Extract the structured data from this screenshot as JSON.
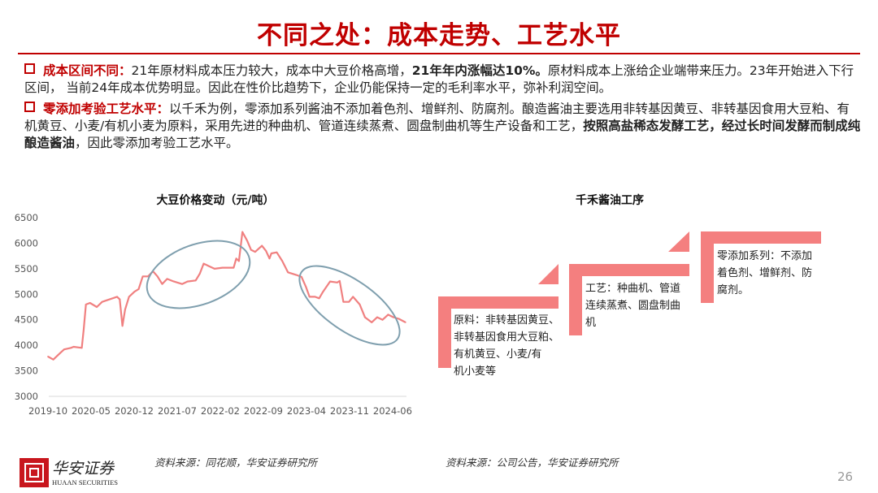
{
  "title": "不同之处：成本走势、工艺水平",
  "bullets": [
    {
      "label": "成本区间不同：",
      "text1": "21年原材料成本压力较大，成本中大豆价格高增，",
      "bold1": "21年年内涨幅达10%。",
      "text2": "原材料成本上涨给企业端带来压力。23年开始进入下行区间， 当前24年成本优势明显。因此在性价比趋势下，企业仍能保持一定的毛利率水平，弥补利润空间。"
    },
    {
      "label": "零添加考验工艺水平：",
      "text1": "以千禾为例，零添加系列酱油不添加着色剂、增鲜剂、防腐剂。酿造酱油主要选用非转基因黄豆、非转基因食用大豆粕、有机黄豆、小麦/有机小麦为原料，采用先进的种曲机、管道连续蒸煮、圆盘制曲机等生产设备和工艺，",
      "bold1": "按照高盐稀态发酵工艺，经过长时间发酵而制成纯酿造酱油",
      "text2": "，因此零添加考验工艺水平。"
    }
  ],
  "chart_data": {
    "type": "line",
    "title": "大豆价格变动（元/吨）",
    "xlabel": "",
    "ylabel": "",
    "ylim": [
      3000,
      6500
    ],
    "yticks": [
      "6500",
      "6000",
      "5500",
      "5000",
      "4500",
      "4000",
      "3500",
      "3000"
    ],
    "xticks": [
      "2019-10",
      "2020-05",
      "2020-12",
      "2021-07",
      "2022-02",
      "2022-09",
      "2023-04",
      "2023-11",
      "2024-06"
    ],
    "grid": false,
    "line_color": "#f08080",
    "annotation_color": "#7f9fae",
    "annotations": [
      "ellipse around 2021-04 to 2022-05",
      "ellipse around 2023-03 to 2024-06"
    ],
    "series": [
      {
        "x": [
          "2019-10-01",
          "2019-10-27",
          "2019-12-01",
          "2019-12-20",
          "2020-01-23",
          "2020-02-06",
          "2020-03-16",
          "2020-03-25",
          "2020-04-06",
          "2020-04-26",
          "2020-05-29",
          "2020-06-25",
          "2020-09-08",
          "2020-09-21",
          "2020-10-04",
          "2020-10-17",
          "2020-11-06",
          "2020-12-03",
          "2020-12-23",
          "2021-01-13",
          "2021-02-09",
          "2021-03-03",
          "2021-03-25",
          "2021-04-18",
          "2021-05-12",
          "2021-06-15",
          "2021-07-25",
          "2021-08-21",
          "2021-10-01",
          "2021-10-21",
          "2021-11-10",
          "2021-12-06",
          "2022-01-03",
          "2022-02-12",
          "2022-04-06",
          "2022-04-19",
          "2022-05-02",
          "2022-05-19",
          "2022-06-12",
          "2022-07-01",
          "2022-07-21",
          "2022-08-24",
          "2022-09-14",
          "2022-10-01",
          "2022-10-10",
          "2022-11-06",
          "2022-12-03",
          "2023-01-01",
          "2023-02-10",
          "2023-03-07",
          "2023-03-28",
          "2023-04-16",
          "2023-05-13",
          "2023-06-03",
          "2023-06-22",
          "2023-07-26",
          "2023-09-01",
          "2023-09-13",
          "2023-10-01",
          "2023-10-28",
          "2023-11-18",
          "2023-12-21",
          "2024-01-16",
          "2024-02-19",
          "2024-03-16",
          "2024-04-12",
          "2024-05-09",
          "2024-06-05",
          "2024-07-01",
          "2024-08-04"
        ],
        "values": [
          3780,
          3720,
          3850,
          3920,
          3950,
          3970,
          3950,
          4300,
          4800,
          4830,
          4750,
          4850,
          4950,
          4900,
          4380,
          4700,
          4950,
          5050,
          5100,
          5350,
          5350,
          5450,
          5350,
          5200,
          5300,
          5250,
          5200,
          5250,
          5270,
          5400,
          5600,
          5550,
          5500,
          5520,
          5520,
          5700,
          5650,
          6220,
          6050,
          5870,
          5830,
          5950,
          5850,
          5700,
          5800,
          5820,
          5650,
          5430,
          5380,
          5340,
          5150,
          4950,
          4950,
          4920,
          5050,
          5250,
          5230,
          5260,
          4850,
          4850,
          4950,
          4800,
          4550,
          4450,
          4550,
          4500,
          4600,
          4550,
          4520,
          4450
        ]
      }
    ]
  },
  "process": {
    "title": "千禾酱油工序",
    "color": "#f47f7f",
    "steps": [
      {
        "lines": [
          "原料：非转基因黄豆、",
          "非转基因食用大豆粕、",
          "有机黄豆、小麦/有",
          "机小麦等"
        ]
      },
      {
        "lines": [
          "工艺：种曲机、管道",
          "连续蒸煮、圆盘制曲",
          "机"
        ]
      },
      {
        "lines": [
          "零添加系列：不添加",
          "着色剂、增鲜剂、防",
          "腐剂。"
        ]
      }
    ]
  },
  "footer": {
    "source_left": "资料来源：同花顺，华安证券研究所",
    "source_right": "资料来源：公司公告，华安证券研究所",
    "logo_cn": "华安证券",
    "logo_en": "HUAAN SECURITIES",
    "page_number": "26"
  }
}
